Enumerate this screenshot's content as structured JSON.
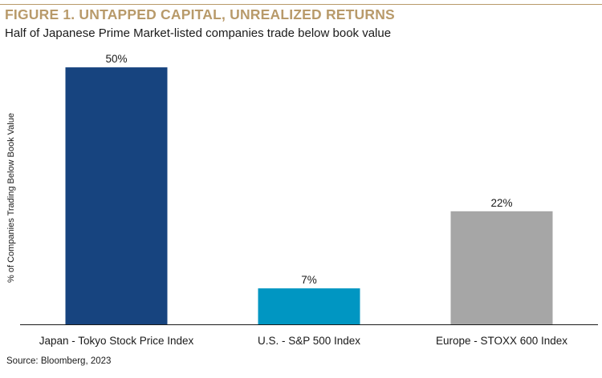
{
  "header": {
    "title": "FIGURE 1. UNTAPPED CAPITAL, UNREALIZED RETURNS",
    "subtitle": "Half of Japanese Prime Market-listed companies trade below book value"
  },
  "footer": {
    "source": "Source: Bloomberg, 2023"
  },
  "colors": {
    "accent": "#b89a6a"
  },
  "chart_data": {
    "type": "bar",
    "title": "FIGURE 1. UNTAPPED CAPITAL, UNREALIZED RETURNS",
    "subtitle": "Half of Japanese Prime Market-listed companies trade below book value",
    "xlabel": "",
    "ylabel": "% of Companies Trading Below Book Value",
    "categories": [
      "Japan - Tokyo Stock Price Index",
      "U.S. - S&P 500 Index",
      "Europe - STOXX 600 Index"
    ],
    "values": [
      50,
      7,
      22
    ],
    "value_labels": [
      "50%",
      "7%",
      "22%"
    ],
    "colors": [
      "#17447f",
      "#0096c2",
      "#a6a6a6"
    ],
    "ylim": [
      0,
      55
    ],
    "grid": false,
    "legend": "none"
  }
}
